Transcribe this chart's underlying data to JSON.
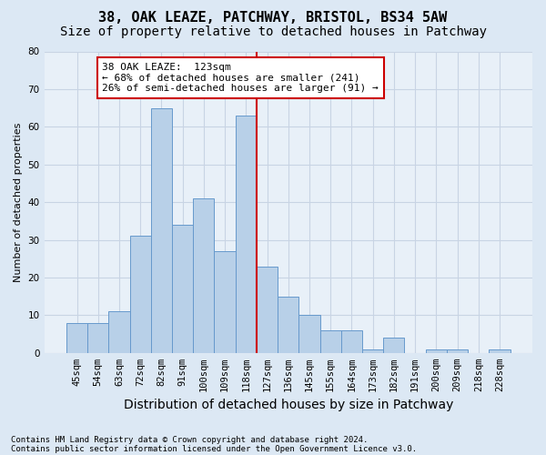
{
  "title": "38, OAK LEAZE, PATCHWAY, BRISTOL, BS34 5AW",
  "subtitle": "Size of property relative to detached houses in Patchway",
  "xlabel": "Distribution of detached houses by size in Patchway",
  "ylabel": "Number of detached properties",
  "footnote1": "Contains HM Land Registry data © Crown copyright and database right 2024.",
  "footnote2": "Contains public sector information licensed under the Open Government Licence v3.0.",
  "bar_labels": [
    "45sqm",
    "54sqm",
    "63sqm",
    "72sqm",
    "82sqm",
    "91sqm",
    "100sqm",
    "109sqm",
    "118sqm",
    "127sqm",
    "136sqm",
    "145sqm",
    "155sqm",
    "164sqm",
    "173sqm",
    "182sqm",
    "191sqm",
    "200sqm",
    "209sqm",
    "218sqm",
    "228sqm"
  ],
  "bar_values": [
    8,
    8,
    11,
    31,
    65,
    34,
    41,
    27,
    63,
    23,
    15,
    10,
    6,
    6,
    1,
    4,
    0,
    1,
    1,
    0,
    1
  ],
  "bar_color": "#b8d0e8",
  "bar_edge_color": "#6699cc",
  "highlight_line_index": 9,
  "annotation_title": "38 OAK LEAZE:  123sqm",
  "annotation_line1": "← 68% of detached houses are smaller (241)",
  "annotation_line2": "26% of semi-detached houses are larger (91) →",
  "annotation_box_color": "#ffffff",
  "annotation_box_edge": "#cc0000",
  "ylim": [
    0,
    80
  ],
  "yticks": [
    0,
    10,
    20,
    30,
    40,
    50,
    60,
    70,
    80
  ],
  "grid_color": "#c8d4e4",
  "background_color": "#dce8f4",
  "plot_bg_color": "#e8f0f8",
  "title_fontsize": 11,
  "subtitle_fontsize": 10,
  "xlabel_fontsize": 10,
  "ylabel_fontsize": 8,
  "tick_fontsize": 7.5,
  "annotation_fontsize": 8,
  "footnote_fontsize": 6.5
}
